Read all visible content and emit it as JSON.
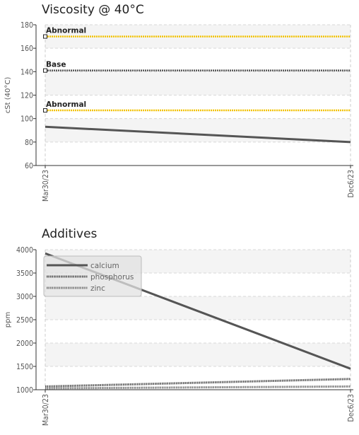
{
  "chart_data": [
    {
      "type": "line",
      "title": "Viscosity @ 40°C",
      "ylabel": "cSt (40°C)",
      "xlabel": "",
      "ylim": [
        60,
        180
      ],
      "yticks": [
        60,
        80,
        100,
        120,
        140,
        160,
        180
      ],
      "x": [
        "Mar30/23",
        "Dec6/23"
      ],
      "series": [
        {
          "values": [
            93,
            80
          ],
          "color": "#555555"
        }
      ],
      "reference_lines": [
        {
          "label": "Abnormal",
          "value": 170,
          "color": "#f2c200"
        },
        {
          "label": "Base",
          "value": 141,
          "color": "#555555"
        },
        {
          "label": "Abnormal",
          "value": 107,
          "color": "#f2c200"
        }
      ],
      "grid": true
    },
    {
      "type": "line",
      "title": "Additives",
      "ylabel": "ppm",
      "xlabel": "",
      "ylim": [
        1000,
        4000
      ],
      "yticks": [
        1000,
        1500,
        2000,
        2500,
        3000,
        3500,
        4000
      ],
      "x": [
        "Mar30/23",
        "Dec6/23"
      ],
      "series": [
        {
          "name": "calcium",
          "values": [
            3920,
            1450
          ],
          "color": "#555555",
          "style": "solid"
        },
        {
          "name": "phosphorus",
          "values": [
            1070,
            1230
          ],
          "color": "#555555",
          "style": "dotted"
        },
        {
          "name": "zinc",
          "values": [
            1030,
            1070
          ],
          "color": "#777777",
          "style": "dotted"
        }
      ],
      "legend": "top-left",
      "grid": true
    }
  ]
}
